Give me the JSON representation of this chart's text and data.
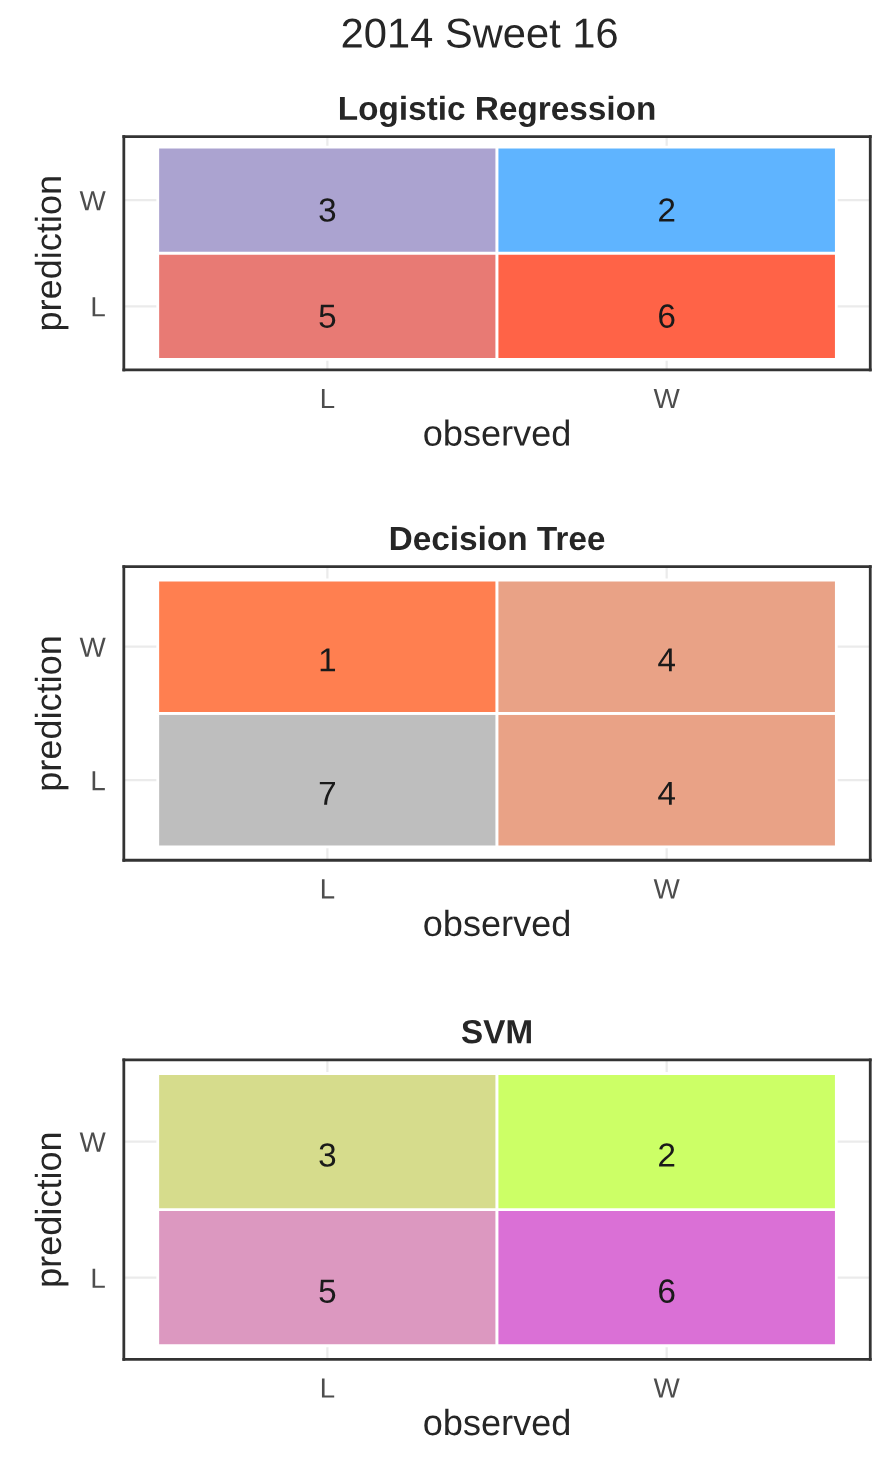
{
  "chart_data": [
    {
      "type": "heatmap",
      "title": "2014 Sweet 16",
      "subtitle": "Logistic Regression",
      "xlabel": "observed",
      "ylabel": "prediction",
      "categories": [
        "L",
        "W"
      ],
      "y_categories": [
        "W",
        "L"
      ],
      "cells": [
        [
          3,
          2
        ],
        [
          5,
          6
        ]
      ],
      "colors": [
        [
          "#aba3d0",
          "#5fb4ff"
        ],
        [
          "#e87a74",
          "#ff6347"
        ]
      ],
      "data_labels": true,
      "grid": true
    },
    {
      "type": "heatmap",
      "title": "Decision Tree",
      "xlabel": "observed",
      "ylabel": "prediction",
      "categories": [
        "L",
        "W"
      ],
      "y_categories": [
        "W",
        "L"
      ],
      "cells": [
        [
          1,
          4
        ],
        [
          7,
          4
        ]
      ],
      "colors": [
        [
          "#ff7f50",
          "#e9a286"
        ],
        [
          "#bebebe",
          "#e9a286"
        ]
      ],
      "data_labels": true,
      "grid": true
    },
    {
      "type": "heatmap",
      "title": "SVM",
      "xlabel": "observed",
      "ylabel": "prediction",
      "categories": [
        "L",
        "W"
      ],
      "y_categories": [
        "W",
        "L"
      ],
      "cells": [
        [
          3,
          2
        ],
        [
          5,
          6
        ]
      ],
      "colors": [
        [
          "#d6dc8c",
          "#ccff66"
        ],
        [
          "#dc98c0",
          "#da70d6"
        ]
      ],
      "data_labels": true,
      "grid": true
    }
  ]
}
